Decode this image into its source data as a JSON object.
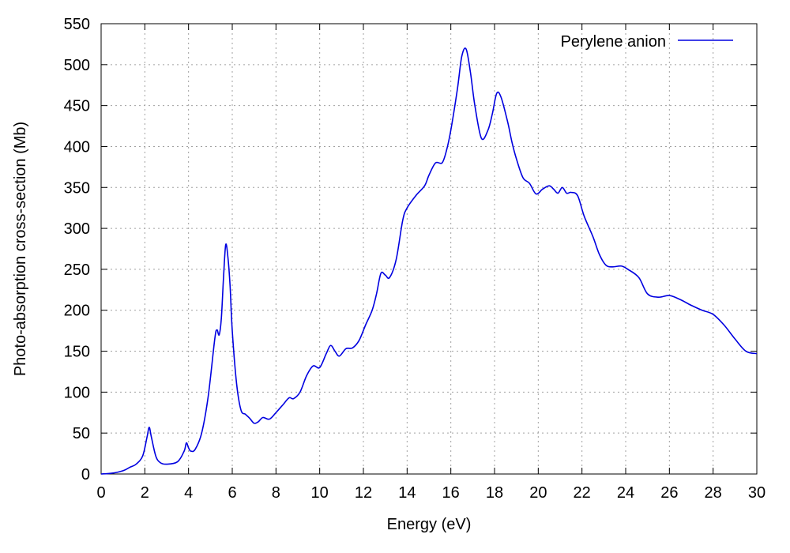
{
  "chart_data": {
    "type": "line",
    "title": "",
    "xlabel": "Energy (eV)",
    "ylabel": "Photo-absorption cross-section (Mb)",
    "xlim": [
      0,
      30
    ],
    "ylim": [
      0,
      550
    ],
    "xticks": [
      "0",
      "2",
      "4",
      "6",
      "8",
      "10",
      "12",
      "14",
      "16",
      "18",
      "20",
      "22",
      "24",
      "26",
      "28",
      "30"
    ],
    "yticks": [
      "0",
      "50",
      "100",
      "150",
      "200",
      "250",
      "300",
      "350",
      "400",
      "450",
      "500",
      "550"
    ],
    "grid": true,
    "legend_position": "top-right",
    "series": [
      {
        "name": "Perylene anion",
        "color": "#0000e0",
        "x": [
          0,
          0.5,
          1.0,
          1.3,
          1.6,
          1.9,
          2.1,
          2.2,
          2.3,
          2.5,
          2.7,
          3.0,
          3.5,
          3.8,
          3.9,
          4.0,
          4.1,
          4.3,
          4.6,
          4.9,
          5.2,
          5.3,
          5.4,
          5.5,
          5.6,
          5.7,
          5.8,
          5.9,
          6.0,
          6.2,
          6.4,
          6.6,
          6.8,
          7.0,
          7.2,
          7.4,
          7.7,
          8.0,
          8.3,
          8.6,
          8.8,
          9.1,
          9.4,
          9.7,
          10.0,
          10.3,
          10.5,
          10.7,
          10.9,
          11.2,
          11.5,
          11.8,
          12.1,
          12.4,
          12.6,
          12.8,
          13.0,
          13.2,
          13.5,
          13.8,
          14.0,
          14.4,
          14.8,
          15.0,
          15.3,
          15.6,
          15.8,
          16.0,
          16.3,
          16.5,
          16.7,
          16.9,
          17.1,
          17.4,
          17.7,
          17.9,
          18.1,
          18.3,
          18.6,
          18.8,
          19.0,
          19.3,
          19.6,
          19.9,
          20.2,
          20.5,
          20.7,
          20.9,
          21.1,
          21.3,
          21.5,
          21.8,
          22.1,
          22.5,
          22.8,
          23.1,
          23.4,
          23.8,
          24.1,
          24.6,
          25.0,
          25.5,
          26.0,
          26.5,
          27.0,
          27.5,
          28.0,
          28.5,
          29.0,
          29.5,
          30.0
        ],
        "values": [
          0,
          1,
          4,
          8,
          12,
          22,
          45,
          57,
          45,
          22,
          14,
          12,
          15,
          28,
          38,
          32,
          28,
          30,
          50,
          95,
          165,
          176,
          170,
          190,
          240,
          280,
          265,
          230,
          175,
          110,
          78,
          73,
          68,
          62,
          64,
          69,
          67,
          75,
          84,
          93,
          92,
          100,
          120,
          132,
          130,
          147,
          157,
          150,
          144,
          153,
          154,
          163,
          182,
          200,
          220,
          245,
          243,
          240,
          262,
          310,
          325,
          340,
          352,
          365,
          380,
          380,
          395,
          420,
          470,
          510,
          519,
          490,
          450,
          410,
          420,
          440,
          465,
          460,
          430,
          405,
          385,
          362,
          355,
          342,
          348,
          352,
          348,
          343,
          350,
          343,
          344,
          340,
          315,
          290,
          268,
          255,
          253,
          254,
          250,
          240,
          220,
          216,
          218,
          213,
          206,
          200,
          195,
          182,
          165,
          150,
          147
        ]
      }
    ]
  }
}
